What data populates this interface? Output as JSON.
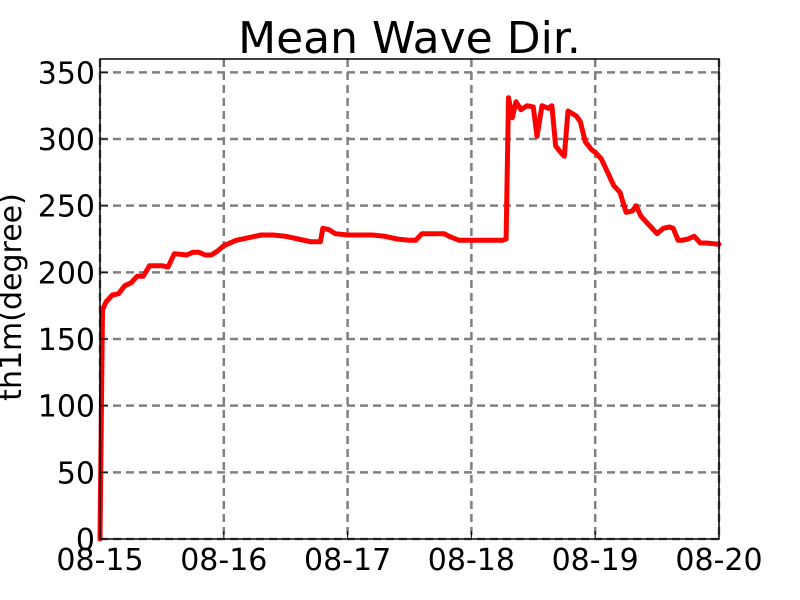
{
  "chart_data": {
    "type": "line",
    "title": "Mean Wave Dir.",
    "xlabel": "",
    "ylabel": "th1m(degree)",
    "x_tick_labels": [
      "08-15",
      "08-16",
      "08-17",
      "08-18",
      "08-19",
      "08-20"
    ],
    "y_ticks": [
      0,
      50,
      100,
      150,
      200,
      250,
      300,
      350
    ],
    "xlim_days": [
      0,
      5
    ],
    "ylim": [
      0,
      360
    ],
    "grid": true,
    "legend": "none",
    "series": [
      {
        "color": "#ff0000",
        "points": [
          [
            0.0,
            0
          ],
          [
            0.02,
            172
          ],
          [
            0.05,
            178
          ],
          [
            0.1,
            183
          ],
          [
            0.15,
            184
          ],
          [
            0.2,
            190
          ],
          [
            0.25,
            192
          ],
          [
            0.3,
            197
          ],
          [
            0.35,
            197
          ],
          [
            0.4,
            205
          ],
          [
            0.5,
            205
          ],
          [
            0.55,
            204
          ],
          [
            0.6,
            214
          ],
          [
            0.7,
            213
          ],
          [
            0.75,
            215
          ],
          [
            0.8,
            215
          ],
          [
            0.85,
            213
          ],
          [
            0.9,
            213
          ],
          [
            0.95,
            216
          ],
          [
            1.0,
            220
          ],
          [
            1.1,
            224
          ],
          [
            1.2,
            226
          ],
          [
            1.3,
            228
          ],
          [
            1.4,
            228
          ],
          [
            1.5,
            227
          ],
          [
            1.6,
            225
          ],
          [
            1.7,
            223
          ],
          [
            1.78,
            223
          ],
          [
            1.8,
            233
          ],
          [
            1.85,
            232
          ],
          [
            1.9,
            229
          ],
          [
            2.0,
            228
          ],
          [
            2.1,
            228
          ],
          [
            2.2,
            228
          ],
          [
            2.3,
            227
          ],
          [
            2.4,
            225
          ],
          [
            2.5,
            224
          ],
          [
            2.55,
            224
          ],
          [
            2.6,
            229
          ],
          [
            2.7,
            229
          ],
          [
            2.78,
            229
          ],
          [
            2.82,
            227
          ],
          [
            2.9,
            224
          ],
          [
            3.0,
            224
          ],
          [
            3.1,
            224
          ],
          [
            3.2,
            224
          ],
          [
            3.25,
            224
          ],
          [
            3.28,
            225
          ],
          [
            3.3,
            331
          ],
          [
            3.33,
            316
          ],
          [
            3.36,
            328
          ],
          [
            3.4,
            322
          ],
          [
            3.45,
            325
          ],
          [
            3.5,
            324
          ],
          [
            3.53,
            302
          ],
          [
            3.57,
            325
          ],
          [
            3.62,
            323
          ],
          [
            3.65,
            325
          ],
          [
            3.68,
            295
          ],
          [
            3.72,
            290
          ],
          [
            3.75,
            287
          ],
          [
            3.78,
            321
          ],
          [
            3.85,
            317
          ],
          [
            3.88,
            313
          ],
          [
            3.92,
            298
          ],
          [
            3.97,
            292
          ],
          [
            4.0,
            290
          ],
          [
            4.05,
            285
          ],
          [
            4.1,
            275
          ],
          [
            4.15,
            265
          ],
          [
            4.2,
            260
          ],
          [
            4.25,
            245
          ],
          [
            4.3,
            246
          ],
          [
            4.33,
            250
          ],
          [
            4.37,
            242
          ],
          [
            4.45,
            234
          ],
          [
            4.5,
            229
          ],
          [
            4.55,
            233
          ],
          [
            4.6,
            234
          ],
          [
            4.63,
            233
          ],
          [
            4.67,
            224
          ],
          [
            4.7,
            224
          ],
          [
            4.75,
            225
          ],
          [
            4.8,
            227
          ],
          [
            4.85,
            222
          ],
          [
            4.9,
            222
          ],
          [
            5.0,
            221
          ]
        ]
      }
    ]
  }
}
